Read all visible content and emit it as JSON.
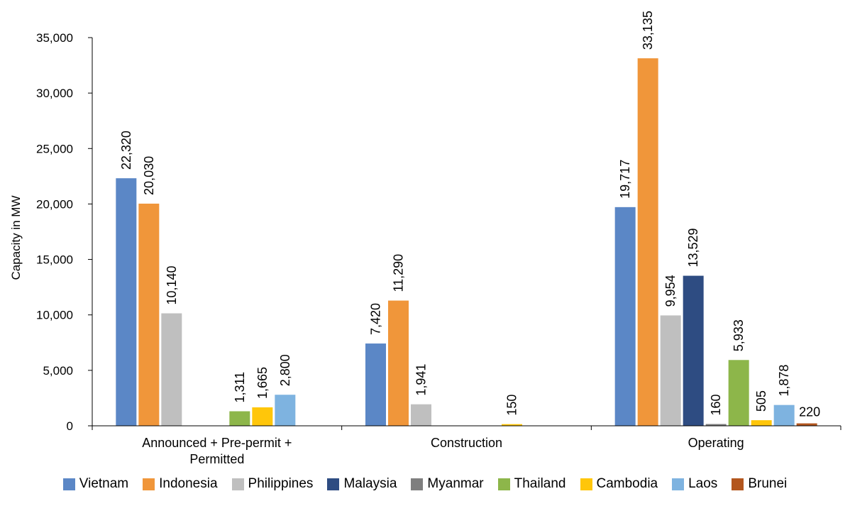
{
  "chart_data": {
    "type": "bar",
    "ylabel": "Capacity in MW",
    "xlabel": "",
    "ylim": [
      0,
      35000
    ],
    "yticks": [
      0,
      5000,
      10000,
      15000,
      20000,
      25000,
      30000,
      35000
    ],
    "ytick_labels": [
      "0",
      "5,000",
      "10,000",
      "15,000",
      "20,000",
      "25,000",
      "30,000",
      "35,000"
    ],
    "grid": false,
    "legend_position": "bottom",
    "categories": [
      [
        "Announced + Pre-permit +",
        "Permitted"
      ],
      [
        "Construction"
      ],
      [
        "Operating"
      ]
    ],
    "series": [
      {
        "name": "Vietnam",
        "color": "#5B87C6",
        "values": [
          22320,
          7420,
          19717
        ],
        "labels": [
          "22,320",
          "7,420",
          "19,717"
        ]
      },
      {
        "name": "Indonesia",
        "color": "#F0963A",
        "values": [
          20030,
          11290,
          33135
        ],
        "labels": [
          "20,030",
          "11,290",
          "33,135"
        ]
      },
      {
        "name": "Philippines",
        "color": "#BFBFBF",
        "values": [
          10140,
          1941,
          9954
        ],
        "labels": [
          "10,140",
          "1,941",
          "9,954"
        ]
      },
      {
        "name": "Malaysia",
        "color": "#2E4C82",
        "values": [
          0,
          0,
          13529
        ],
        "labels": [
          "",
          "",
          "13,529"
        ]
      },
      {
        "name": "Myanmar",
        "color": "#7F7F7F",
        "values": [
          0,
          0,
          160
        ],
        "labels": [
          "",
          "",
          "160"
        ]
      },
      {
        "name": "Thailand",
        "color": "#8DB64A",
        "values": [
          1311,
          0,
          5933
        ],
        "labels": [
          "1,311",
          "",
          "5,933"
        ]
      },
      {
        "name": "Cambodia",
        "color": "#FFC60A",
        "values": [
          1665,
          150,
          505
        ],
        "labels": [
          "1,665",
          "150",
          "505"
        ]
      },
      {
        "name": "Laos",
        "color": "#7EB3E0",
        "values": [
          2800,
          0,
          1878
        ],
        "labels": [
          "2,800",
          "",
          "1,878"
        ]
      },
      {
        "name": "Brunei",
        "color": "#B3561E",
        "values": [
          0,
          0,
          220
        ],
        "labels": [
          "",
          "",
          "220"
        ]
      }
    ]
  }
}
